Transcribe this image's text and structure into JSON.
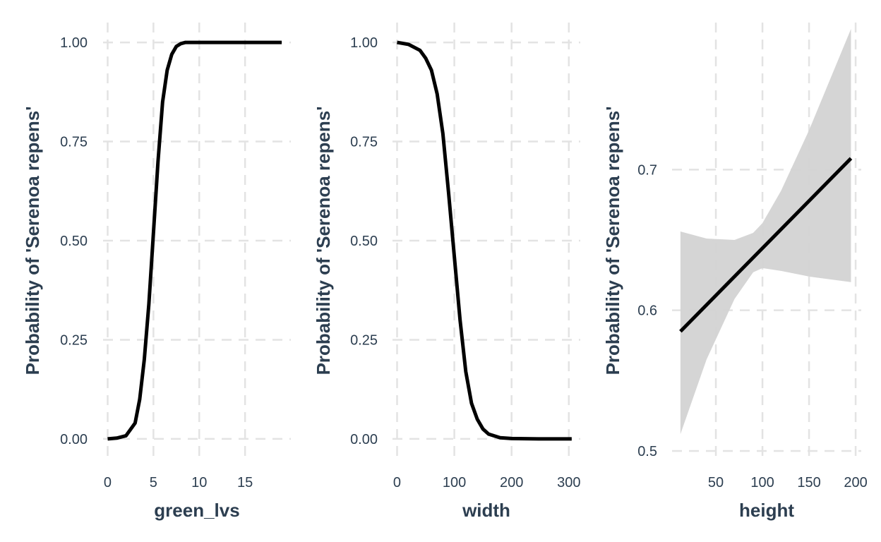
{
  "chart_data": [
    {
      "type": "line",
      "xlabel": "green_lvs",
      "ylabel": "Probability of 'Serenoa repens'",
      "xlim": [
        -0.5,
        20
      ],
      "ylim": [
        -0.05,
        1.05
      ],
      "xticks": [
        0,
        5,
        10,
        15
      ],
      "xtick_labels": [
        "0",
        "5",
        "10",
        "15"
      ],
      "yticks": [
        0,
        0.25,
        0.5,
        0.75,
        1
      ],
      "ytick_labels": [
        "0.00",
        "0.25",
        "0.50",
        "0.75",
        "1.00"
      ],
      "grid": true,
      "series": [
        {
          "color": "#000000",
          "x": [
            0,
            1,
            2,
            3,
            3.5,
            4,
            4.5,
            5,
            5.5,
            6,
            6.5,
            7,
            7.5,
            8,
            8.5,
            9,
            10,
            12,
            15,
            19
          ],
          "y": [
            0.0,
            0.002,
            0.008,
            0.04,
            0.1,
            0.2,
            0.34,
            0.52,
            0.7,
            0.85,
            0.93,
            0.97,
            0.99,
            0.997,
            1.0,
            1.0,
            1.0,
            1.0,
            1.0,
            1.0
          ]
        }
      ]
    },
    {
      "type": "line",
      "xlabel": "width",
      "ylabel": "Probability of 'Serenoa repens'",
      "xlim": [
        -8,
        320
      ],
      "ylim": [
        -0.05,
        1.05
      ],
      "xticks": [
        0,
        100,
        200,
        300
      ],
      "xtick_labels": [
        "0",
        "100",
        "200",
        "300"
      ],
      "yticks": [
        0,
        0.25,
        0.5,
        0.75,
        1
      ],
      "ytick_labels": [
        "0.00",
        "0.25",
        "0.50",
        "0.75",
        "1.00"
      ],
      "grid": true,
      "series": [
        {
          "color": "#000000",
          "x": [
            0,
            20,
            40,
            50,
            60,
            70,
            80,
            90,
            100,
            110,
            120,
            130,
            140,
            150,
            160,
            180,
            200,
            250,
            305
          ],
          "y": [
            1.0,
            0.995,
            0.98,
            0.96,
            0.93,
            0.87,
            0.77,
            0.62,
            0.46,
            0.3,
            0.17,
            0.09,
            0.05,
            0.025,
            0.012,
            0.003,
            0.001,
            0.0,
            0.0
          ]
        }
      ]
    },
    {
      "type": "line",
      "xlabel": "height",
      "ylabel": "Probability of 'Serenoa repens'",
      "xlim": [
        3,
        206
      ],
      "ylim": [
        0.4945,
        0.8045
      ],
      "xticks": [
        50,
        100,
        150,
        200
      ],
      "xtick_labels": [
        "50",
        "100",
        "150",
        "200"
      ],
      "yticks": [
        0.5,
        0.6,
        0.7
      ],
      "ytick_labels": [
        "0.5",
        "0.6",
        "0.7"
      ],
      "grid": true,
      "series": [
        {
          "color": "#000000",
          "x": [
            12,
            195
          ],
          "y": [
            0.585,
            0.708
          ]
        }
      ],
      "confidence_band": {
        "fill": "#d3d3d3",
        "x": [
          12,
          40,
          70,
          90,
          100,
          120,
          150,
          195
        ],
        "lower": [
          0.512,
          0.565,
          0.608,
          0.627,
          0.63,
          0.628,
          0.624,
          0.62
        ],
        "upper": [
          0.656,
          0.651,
          0.65,
          0.655,
          0.662,
          0.685,
          0.728,
          0.8
        ]
      }
    }
  ]
}
